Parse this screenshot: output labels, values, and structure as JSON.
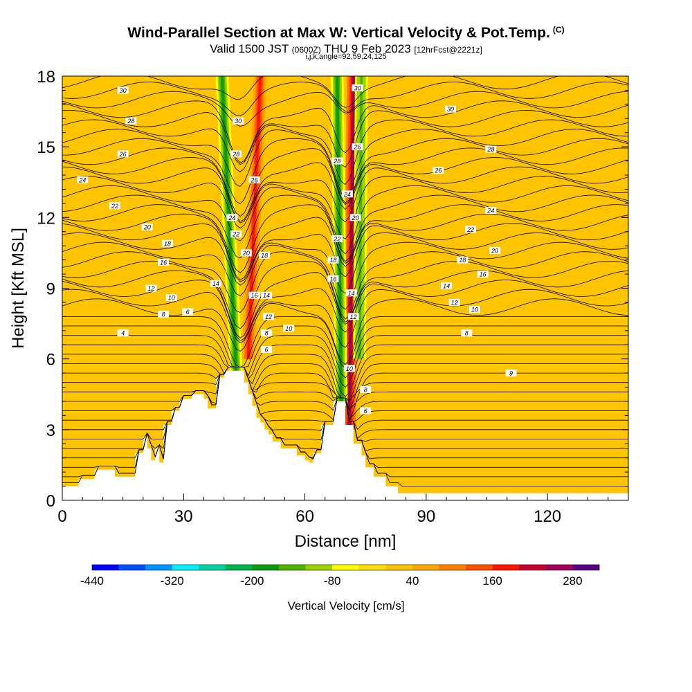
{
  "chart_data": {
    "type": "heatmap",
    "title": "Wind-Parallel Section at Max W: Vertical Velocity & Pot.Temp.",
    "title_mark": "(C)",
    "subtitle": {
      "valid": "Valid 1500 JST",
      "utc": "(0600Z)",
      "date": "THU 9 Feb 2023",
      "forecast": "[12hrFcst@2221z]"
    },
    "params_line": "i,j,k,angle=92,59,24,125",
    "xlabel": "Distance [nm]",
    "ylabel": "Height [Kft MSL]",
    "xlim": [
      0,
      140
    ],
    "ylim": [
      0,
      18
    ],
    "x_ticks": [
      "0",
      "30",
      "60",
      "90",
      "120"
    ],
    "y_ticks": [
      "0",
      "3",
      "6",
      "9",
      "12",
      "15",
      "18"
    ],
    "colorbar": {
      "label": "Vertical Velocity [cm/s]",
      "tick_labels": [
        "-440",
        "-320",
        "-200",
        "-80",
        "40",
        "160",
        "280"
      ],
      "levels": [
        -440,
        -400,
        -360,
        -320,
        -280,
        -240,
        -200,
        -160,
        -120,
        -80,
        -40,
        0,
        40,
        80,
        120,
        160,
        200,
        240,
        280,
        320
      ],
      "colors": [
        "#0000ff",
        "#0050ff",
        "#0096ff",
        "#00f0ff",
        "#00d2a0",
        "#00b450",
        "#109a10",
        "#50b400",
        "#a0d200",
        "#ffff00",
        "#ffe000",
        "#ffc400",
        "#ffa800",
        "#ff8000",
        "#ff5000",
        "#ff1400",
        "#c80032",
        "#a0005a",
        "#5a0082"
      ]
    },
    "background_level_cm_s": 10,
    "updraft_bands": [
      {
        "x_bottom": 46,
        "x_top": 49,
        "z_bottom": 6,
        "peak_cm_s": 190
      },
      {
        "x_bottom": 71,
        "x_top": 72,
        "z_bottom": 3,
        "peak_cm_s": 240
      }
    ],
    "downdraft_bands": [
      {
        "x_bottom": 43,
        "x_top": 39.5,
        "z_bottom": 5.5,
        "peak_cm_s": -180
      },
      {
        "x_bottom": 69,
        "x_top": 68,
        "z_bottom": 4,
        "peak_cm_s": -200
      },
      {
        "x_bottom": 73.5,
        "x_top": 74,
        "z_bottom": 6,
        "peak_cm_s": -150
      }
    ],
    "terrain": {
      "x": [
        0,
        4,
        4,
        8,
        8,
        13,
        13,
        18,
        18,
        20,
        20,
        21,
        21,
        22,
        22,
        23,
        23,
        24,
        24,
        25,
        25,
        27,
        27,
        29,
        29,
        32,
        32,
        35,
        35,
        36,
        36,
        38,
        38,
        40,
        40,
        45,
        45,
        46,
        46,
        47,
        47,
        48,
        48,
        49,
        49,
        50,
        50,
        51,
        51,
        52,
        52,
        54,
        54,
        58,
        58,
        60,
        60,
        61,
        61,
        62,
        62,
        64,
        64,
        67,
        67,
        70,
        70,
        72,
        72,
        74,
        74,
        75,
        75,
        77,
        77,
        80,
        80,
        83,
        83,
        87,
        87,
        140
      ],
      "z": [
        0.6,
        0.6,
        0.9,
        0.9,
        1.3,
        1.3,
        1,
        1,
        2,
        2,
        2.7,
        2.7,
        2.2,
        2.2,
        1.7,
        1.7,
        2.2,
        2.2,
        1.6,
        1.6,
        3.2,
        3.2,
        3.8,
        3.8,
        4.3,
        4.3,
        4.5,
        4.5,
        4.3,
        4.3,
        3.9,
        3.9,
        5.2,
        5.2,
        5.5,
        5.5,
        5,
        5,
        4.5,
        4.5,
        4,
        4,
        3.5,
        3.5,
        3.3,
        3.3,
        3,
        3,
        2.8,
        2.8,
        2.5,
        2.5,
        2.2,
        2.2,
        1.9,
        1.9,
        1.7,
        1.7,
        1.6,
        1.6,
        2,
        2,
        3.2,
        3.2,
        4.2,
        4.2,
        3.2,
        3.2,
        2.4,
        2.4,
        1.9,
        1.9,
        1.4,
        1.4,
        1,
        1,
        0.6,
        0.6,
        0.3,
        0.3,
        0.3,
        0.3
      ]
    },
    "theta_contour_labels": [
      "4",
      "6",
      "8",
      "9",
      "10",
      "12",
      "14",
      "16",
      "18",
      "20",
      "22",
      "24",
      "26",
      "28",
      "30"
    ],
    "theta_label_positions": [
      {
        "text": "30",
        "x": 15,
        "z": 17.4
      },
      {
        "text": "28",
        "x": 17,
        "z": 16.1
      },
      {
        "text": "26",
        "x": 15,
        "z": 14.7
      },
      {
        "text": "24",
        "x": 5,
        "z": 13.6
      },
      {
        "text": "22",
        "x": 13,
        "z": 12.5
      },
      {
        "text": "20",
        "x": 21,
        "z": 11.6
      },
      {
        "text": "18",
        "x": 26,
        "z": 10.9
      },
      {
        "text": "16",
        "x": 25,
        "z": 10.1
      },
      {
        "text": "12",
        "x": 22,
        "z": 9.0
      },
      {
        "text": "10",
        "x": 27,
        "z": 8.6
      },
      {
        "text": "8",
        "x": 25,
        "z": 7.9
      },
      {
        "text": "6",
        "x": 31,
        "z": 8.0
      },
      {
        "text": "4",
        "x": 15,
        "z": 7.1
      },
      {
        "text": "14",
        "x": 38,
        "z": 9.2
      },
      {
        "text": "30",
        "x": 43.5,
        "z": 16.1
      },
      {
        "text": "28",
        "x": 43,
        "z": 14.7
      },
      {
        "text": "26",
        "x": 47.5,
        "z": 13.6
      },
      {
        "text": "24",
        "x": 42,
        "z": 12.0
      },
      {
        "text": "22",
        "x": 43,
        "z": 11.3
      },
      {
        "text": "20",
        "x": 45.5,
        "z": 10.5
      },
      {
        "text": "18",
        "x": 50,
        "z": 10.4
      },
      {
        "text": "16",
        "x": 47.5,
        "z": 8.7
      },
      {
        "text": "14",
        "x": 50.5,
        "z": 8.7
      },
      {
        "text": "12",
        "x": 51,
        "z": 7.8
      },
      {
        "text": "8",
        "x": 50.5,
        "z": 7.1
      },
      {
        "text": "10",
        "x": 56,
        "z": 7.3
      },
      {
        "text": "6",
        "x": 50.5,
        "z": 6.4
      },
      {
        "text": "30",
        "x": 73,
        "z": 17.5
      },
      {
        "text": "26",
        "x": 73,
        "z": 15.0
      },
      {
        "text": "28",
        "x": 68,
        "z": 14.4
      },
      {
        "text": "24",
        "x": 70.5,
        "z": 13.0
      },
      {
        "text": "20",
        "x": 72.5,
        "z": 12.0
      },
      {
        "text": "22",
        "x": 68,
        "z": 11.1
      },
      {
        "text": "18",
        "x": 67,
        "z": 10.2
      },
      {
        "text": "16",
        "x": 67,
        "z": 9.4
      },
      {
        "text": "14",
        "x": 71.5,
        "z": 8.8
      },
      {
        "text": "12",
        "x": 72,
        "z": 7.8
      },
      {
        "text": "10",
        "x": 71,
        "z": 5.6
      },
      {
        "text": "8",
        "x": 75,
        "z": 4.7
      },
      {
        "text": "6",
        "x": 75,
        "z": 3.8
      },
      {
        "text": "30",
        "x": 96,
        "z": 16.6
      },
      {
        "text": "28",
        "x": 106,
        "z": 14.9
      },
      {
        "text": "26",
        "x": 93,
        "z": 14.0
      },
      {
        "text": "24",
        "x": 106,
        "z": 12.3
      },
      {
        "text": "22",
        "x": 101,
        "z": 11.5
      },
      {
        "text": "20",
        "x": 107,
        "z": 10.6
      },
      {
        "text": "18",
        "x": 99,
        "z": 10.2
      },
      {
        "text": "16",
        "x": 104,
        "z": 9.6
      },
      {
        "text": "14",
        "x": 95,
        "z": 9.1
      },
      {
        "text": "12",
        "x": 97,
        "z": 8.4
      },
      {
        "text": "10",
        "x": 102,
        "z": 8.1
      },
      {
        "text": "8",
        "x": 100,
        "z": 7.1
      },
      {
        "text": "9",
        "x": 111,
        "z": 5.4
      }
    ]
  }
}
